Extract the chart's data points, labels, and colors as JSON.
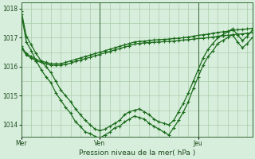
{
  "background_color": "#d8eedd",
  "plot_bg_color": "#d8eedd",
  "line_color": "#1a6b1a",
  "marker_color": "#1a6b1a",
  "grid_color": "#aaccaa",
  "axis_color": "#336633",
  "text_color": "#1a4a1a",
  "title": "Pression niveau de la mer( hPa )",
  "xlim": [
    0,
    47
  ],
  "ylim": [
    1013.6,
    1018.2
  ],
  "yticks": [
    1014,
    1015,
    1016,
    1017,
    1018
  ],
  "day_labels": [
    "Mer",
    "Ven",
    "Jeu"
  ],
  "day_positions": [
    0,
    16,
    36
  ],
  "vline_positions": [
    0,
    16,
    36
  ],
  "series": [
    [
      1017.9,
      1017.05,
      1016.75,
      1016.45,
      1016.2,
      1016.0,
      1015.8,
      1015.5,
      1015.2,
      1015.0,
      1014.8,
      1014.55,
      1014.35,
      1014.15,
      1014.0,
      1013.85,
      1013.8,
      1013.85,
      1013.95,
      1014.05,
      1014.15,
      1014.35,
      1014.45,
      1014.5,
      1014.55,
      1014.45,
      1014.35,
      1014.2,
      1014.1,
      1014.05,
      1014.0,
      1014.15,
      1014.45,
      1014.75,
      1015.1,
      1015.5,
      1015.9,
      1016.3,
      1016.6,
      1016.8,
      1017.0,
      1017.1,
      1017.2,
      1017.3,
      1017.1,
      1016.9,
      1017.05,
      1017.25
    ],
    [
      1017.8,
      1016.85,
      1016.55,
      1016.2,
      1015.9,
      1015.65,
      1015.45,
      1015.1,
      1014.85,
      1014.6,
      1014.4,
      1014.1,
      1013.95,
      1013.75,
      1013.7,
      1013.6,
      1013.55,
      1013.65,
      1013.75,
      1013.9,
      1013.95,
      1014.1,
      1014.2,
      1014.3,
      1014.25,
      1014.2,
      1014.05,
      1013.95,
      1013.85,
      1013.75,
      1013.65,
      1013.9,
      1014.15,
      1014.45,
      1014.8,
      1015.25,
      1015.65,
      1016.05,
      1016.35,
      1016.55,
      1016.8,
      1016.9,
      1017.0,
      1017.1,
      1016.85,
      1016.65,
      1016.8,
      1017.0
    ],
    [
      1016.7,
      1016.45,
      1016.35,
      1016.25,
      1016.2,
      1016.15,
      1016.1,
      1016.1,
      1016.1,
      1016.15,
      1016.2,
      1016.25,
      1016.3,
      1016.35,
      1016.4,
      1016.45,
      1016.5,
      1016.55,
      1016.6,
      1016.65,
      1016.7,
      1016.75,
      1016.8,
      1016.85,
      1016.87,
      1016.88,
      1016.9,
      1016.92,
      1016.93,
      1016.94,
      1016.95,
      1016.97,
      1016.98,
      1017.0,
      1017.02,
      1017.05,
      1017.08,
      1017.1,
      1017.12,
      1017.15,
      1017.18,
      1017.2,
      1017.22,
      1017.25,
      1017.27,
      1017.28,
      1017.3,
      1017.32
    ],
    [
      1016.65,
      1016.4,
      1016.3,
      1016.2,
      1016.15,
      1016.1,
      1016.05,
      1016.05,
      1016.05,
      1016.08,
      1016.12,
      1016.18,
      1016.22,
      1016.28,
      1016.32,
      1016.38,
      1016.42,
      1016.48,
      1016.52,
      1016.58,
      1016.62,
      1016.68,
      1016.72,
      1016.78,
      1016.8,
      1016.82,
      1016.83,
      1016.84,
      1016.85,
      1016.86,
      1016.87,
      1016.88,
      1016.9,
      1016.92,
      1016.93,
      1016.95,
      1016.97,
      1016.98,
      1017.0,
      1017.02,
      1017.05,
      1017.07,
      1017.08,
      1017.1,
      1017.12,
      1017.13,
      1017.15,
      1017.17
    ]
  ]
}
